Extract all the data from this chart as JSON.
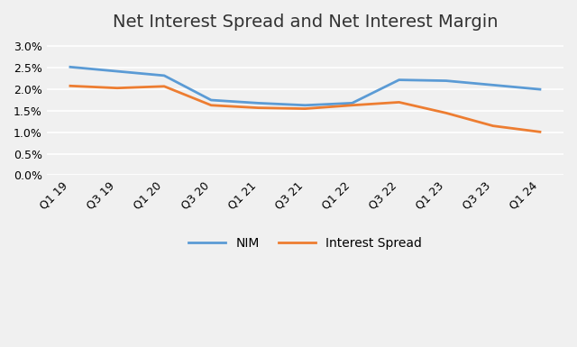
{
  "title": "Net Interest Spread and Net Interest Margin",
  "categories": [
    "Q1 19",
    "Q3 19",
    "Q1 20",
    "Q3 20",
    "Q1 21",
    "Q3 21",
    "Q1 22",
    "Q3 22",
    "Q1 23",
    "Q3 23",
    "Q1 24"
  ],
  "NIM": [
    0.0252,
    0.0242,
    0.0232,
    0.0175,
    0.0168,
    0.0163,
    0.0168,
    0.0222,
    0.022,
    0.021,
    0.02
  ],
  "interest_spread": [
    0.0208,
    0.0203,
    0.0207,
    0.0163,
    0.0157,
    0.0155,
    0.0163,
    0.017,
    0.0145,
    0.0115,
    0.0101
  ],
  "nim_color": "#5B9BD5",
  "spread_color": "#ED7D31",
  "ylim": [
    0.0,
    0.031
  ],
  "yticks": [
    0.0,
    0.005,
    0.01,
    0.015,
    0.02,
    0.025,
    0.03
  ],
  "legend_labels": [
    "NIM",
    "Interest Spread"
  ],
  "background_color": "#f0f0f0",
  "grid_color": "#ffffff",
  "title_fontsize": 14,
  "tick_fontsize": 9,
  "legend_fontsize": 10
}
